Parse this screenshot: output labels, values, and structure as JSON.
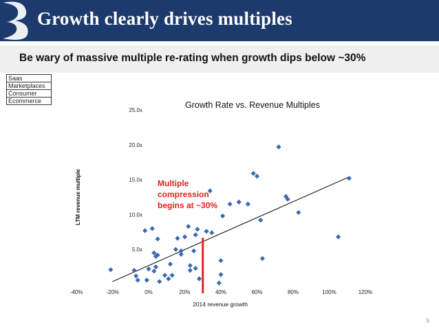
{
  "header": {
    "title": "Growth clearly drives multiples"
  },
  "subheader": {
    "text": "Be wary of massive multiple re-rating when growth dips below ~30%"
  },
  "legend": {
    "items": [
      "Saas",
      "Marketplaces",
      "Consumer",
      "Ecommerce"
    ]
  },
  "page_number": "9",
  "colors": {
    "header_bg": "#1d3a6c",
    "marker": "#3a6ab0",
    "annotation": "#e0231c",
    "trendline": "#000000"
  },
  "chart_data": {
    "type": "scatter",
    "title": "Growth Rate vs. Revenue Multiples",
    "xlabel": "2014 revenue growth",
    "ylabel": "LTM revenue multiple",
    "xlim": [
      -0.4,
      1.2
    ],
    "ylim": [
      0,
      25
    ],
    "x_ticks": [
      -0.4,
      -0.2,
      0,
      0.2,
      0.4,
      0.6,
      0.8,
      1.0,
      1.2
    ],
    "x_tick_labels": [
      "-40%",
      "-20%",
      "0%",
      "20%",
      "40%",
      "60%",
      "80%",
      "100%",
      "120%"
    ],
    "y_ticks": [
      5,
      10,
      15,
      20,
      25
    ],
    "y_tick_labels": [
      "5.0x",
      "10.0x",
      "15.0x",
      "20.0x",
      "25.0x"
    ],
    "series": [
      {
        "points": [
          [
            -0.21,
            2.1
          ],
          [
            -0.08,
            2.0
          ],
          [
            -0.07,
            1.2
          ],
          [
            -0.06,
            0.6
          ],
          [
            -0.02,
            7.7
          ],
          [
            -0.01,
            0.6
          ],
          [
            0.0,
            2.2
          ],
          [
            0.02,
            8.0
          ],
          [
            0.03,
            4.5
          ],
          [
            0.03,
            1.9
          ],
          [
            0.04,
            2.5
          ],
          [
            0.04,
            4.0
          ],
          [
            0.05,
            6.5
          ],
          [
            0.05,
            4.2
          ],
          [
            0.06,
            0.4
          ],
          [
            0.09,
            1.3
          ],
          [
            0.11,
            0.8
          ],
          [
            0.12,
            2.9
          ],
          [
            0.13,
            1.3
          ],
          [
            0.15,
            5.0
          ],
          [
            0.16,
            6.6
          ],
          [
            0.18,
            4.8
          ],
          [
            0.18,
            4.3
          ],
          [
            0.2,
            6.8
          ],
          [
            0.22,
            8.3
          ],
          [
            0.23,
            2.0
          ],
          [
            0.23,
            2.7
          ],
          [
            0.25,
            4.8
          ],
          [
            0.26,
            7.1
          ],
          [
            0.26,
            2.3
          ],
          [
            0.27,
            7.9
          ],
          [
            0.28,
            0.8
          ],
          [
            0.32,
            7.6
          ],
          [
            0.34,
            13.4
          ],
          [
            0.35,
            7.4
          ],
          [
            0.39,
            0.2
          ],
          [
            0.4,
            3.4
          ],
          [
            0.4,
            1.4
          ],
          [
            0.41,
            9.8
          ],
          [
            0.45,
            11.5
          ],
          [
            0.5,
            11.8
          ],
          [
            0.55,
            11.5
          ],
          [
            0.58,
            15.9
          ],
          [
            0.6,
            15.5
          ],
          [
            0.62,
            9.2
          ],
          [
            0.63,
            3.7
          ],
          [
            0.72,
            19.7
          ],
          [
            0.76,
            12.6
          ],
          [
            0.77,
            12.2
          ],
          [
            0.83,
            10.3
          ],
          [
            1.05,
            6.8
          ],
          [
            1.11,
            15.2
          ]
        ]
      }
    ],
    "trendline": {
      "x": [
        -0.2,
        1.11
      ],
      "y": [
        0.4,
        15.4
      ]
    },
    "threshold_x": 0.3,
    "annotation": {
      "text_lines": [
        "Multiple",
        "compression",
        "begins at ~30%"
      ]
    },
    "grid": false,
    "legend": "top-left"
  }
}
